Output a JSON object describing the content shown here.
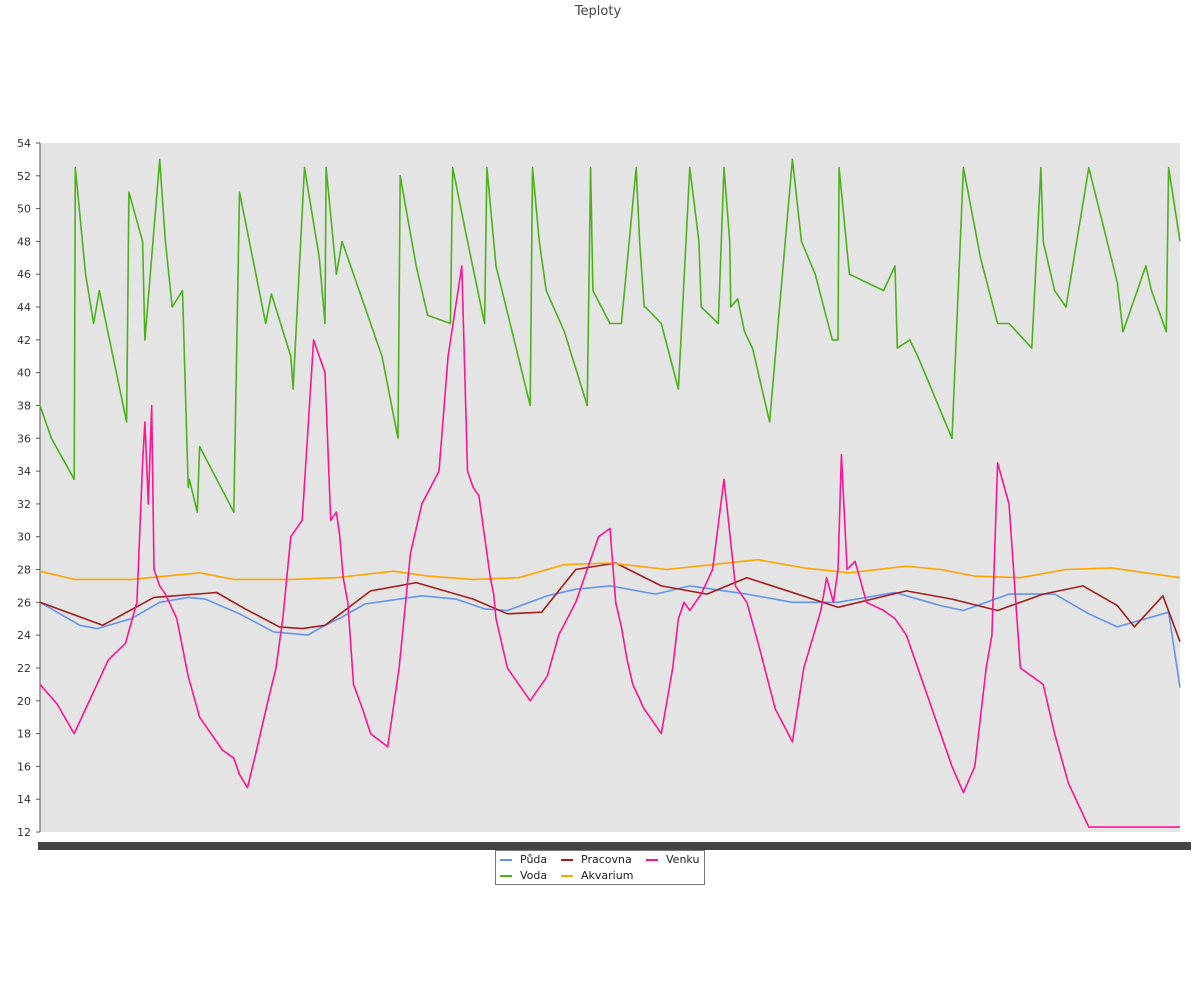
{
  "chart_data": {
    "type": "line",
    "title": "Teploty",
    "xlabel": "",
    "ylabel": "",
    "ylim": [
      12,
      54
    ],
    "y_ticks": [
      12,
      14,
      16,
      18,
      20,
      22,
      24,
      26,
      28,
      30,
      32,
      34,
      36,
      38,
      40,
      42,
      44,
      46,
      48,
      50,
      52,
      54
    ],
    "y_tick_labels": [
      "12",
      "14",
      "16",
      "18",
      "20",
      "22",
      "24",
      "26",
      "28",
      "30",
      "32",
      "34",
      "36",
      "38",
      "40",
      "42",
      "44",
      "46",
      "48",
      "50",
      "52",
      "54"
    ],
    "xlim": [
      0,
      1000
    ],
    "grid": false,
    "plot_background": "#e4e4e4",
    "legend_position": "bottom-center",
    "legend_columns": 3,
    "series": [
      {
        "name": "Půda",
        "color": "#6495ed",
        "x": [
          0,
          35,
          50,
          80,
          105,
          130,
          145,
          175,
          205,
          235,
          250,
          265,
          285,
          335,
          365,
          390,
          410,
          445,
          470,
          500,
          540,
          570,
          620,
          660,
          700,
          750,
          780,
          790,
          810,
          850,
          890,
          920,
          945,
          990,
          1000
        ],
        "y": [
          26.0,
          24.6,
          24.4,
          25.0,
          26.0,
          26.3,
          26.2,
          25.3,
          24.2,
          24.0,
          24.6,
          25.1,
          25.9,
          26.4,
          26.2,
          25.6,
          25.5,
          26.4,
          26.8,
          27.0,
          26.5,
          27.0,
          26.5,
          26.0,
          26.0,
          26.6,
          26.0,
          25.8,
          25.5,
          26.5,
          26.5,
          25.3,
          24.5,
          25.4,
          20.8
        ]
      },
      {
        "name": "Voda",
        "color": "#4cb21a",
        "x": [
          0,
          10,
          30,
          31,
          40,
          47,
          52,
          76,
          78,
          90,
          92,
          105,
          110,
          116,
          125,
          130,
          131,
          138,
          140,
          170,
          175,
          198,
          203,
          220,
          222,
          232,
          245,
          250,
          251,
          260,
          265,
          300,
          314,
          316,
          330,
          340,
          360,
          362,
          375,
          390,
          392,
          398,
          400,
          430,
          432,
          438,
          444,
          460,
          480,
          483,
          485,
          500,
          510,
          523,
          526,
          530,
          531,
          545,
          560,
          570,
          578,
          580,
          595,
          600,
          605,
          606,
          612,
          618,
          625,
          640,
          660,
          668,
          680,
          695,
          700,
          701,
          710,
          740,
          750,
          752,
          763,
          770,
          800,
          810,
          825,
          840,
          850,
          870,
          878,
          880,
          890,
          900,
          920,
          945,
          950,
          970,
          975,
          988,
          990,
          1000
        ],
        "y": [
          38.0,
          36.0,
          33.5,
          52.5,
          46.0,
          43.0,
          45.0,
          37.0,
          51.0,
          48.0,
          42.0,
          53.0,
          48.0,
          44.0,
          45.0,
          33.0,
          33.5,
          31.5,
          35.5,
          31.5,
          51.0,
          43.0,
          44.8,
          41.0,
          39.0,
          52.5,
          47.0,
          43.0,
          52.5,
          46.0,
          48.0,
          41.0,
          36.0,
          52.0,
          46.5,
          43.5,
          43.0,
          52.5,
          48.0,
          43.0,
          52.5,
          48.0,
          46.5,
          38.0,
          52.5,
          48.0,
          45.0,
          42.5,
          38.0,
          52.5,
          45.0,
          43.0,
          43.0,
          52.5,
          48.0,
          44.0,
          44.0,
          43.0,
          39.0,
          52.5,
          48.0,
          44.0,
          43.0,
          52.5,
          48.0,
          44.0,
          44.5,
          42.5,
          41.5,
          37.0,
          53.0,
          48.0,
          46.0,
          42.0,
          42.0,
          52.5,
          46.0,
          45.0,
          46.5,
          41.5,
          42.0,
          41.0,
          36.0,
          52.5,
          47.0,
          43.0,
          43.0,
          41.5,
          52.5,
          48.0,
          45.0,
          44.0,
          52.5,
          45.5,
          42.5,
          46.5,
          45.0,
          42.5,
          52.5,
          48.0
        ]
      },
      {
        "name": "Pracovna",
        "color": "#a31e1e",
        "x": [
          0,
          55,
          100,
          155,
          180,
          210,
          230,
          250,
          290,
          330,
          380,
          410,
          440,
          470,
          505,
          545,
          585,
          620,
          700,
          760,
          800,
          840,
          880,
          915,
          945,
          960,
          985,
          1000
        ],
        "y": [
          26.0,
          24.6,
          26.3,
          26.6,
          25.6,
          24.5,
          24.4,
          24.6,
          26.7,
          27.2,
          26.2,
          25.3,
          25.4,
          28.0,
          28.4,
          27.0,
          26.5,
          27.5,
          25.7,
          26.7,
          26.2,
          25.5,
          26.5,
          27.0,
          25.8,
          24.5,
          26.4,
          23.6
        ]
      },
      {
        "name": "Akvarium",
        "color": "#ffa500",
        "x": [
          0,
          30,
          80,
          140,
          170,
          220,
          260,
          310,
          340,
          380,
          420,
          460,
          500,
          550,
          590,
          630,
          670,
          710,
          760,
          790,
          820,
          860,
          900,
          940,
          990,
          1000
        ],
        "y": [
          27.9,
          27.4,
          27.4,
          27.8,
          27.4,
          27.4,
          27.5,
          27.9,
          27.6,
          27.4,
          27.5,
          28.3,
          28.4,
          28.0,
          28.3,
          28.6,
          28.1,
          27.8,
          28.2,
          28.0,
          27.6,
          27.5,
          28.0,
          28.1,
          27.6,
          27.5
        ]
      },
      {
        "name": "Venku",
        "color": "#ff1493",
        "x": [
          0,
          15,
          30,
          40,
          50,
          60,
          75,
          85,
          90,
          92,
          95,
          98,
          100,
          105,
          110,
          120,
          130,
          140,
          160,
          170,
          175,
          182,
          190,
          200,
          207,
          213,
          220,
          230,
          240,
          250,
          255,
          260,
          263,
          266,
          270,
          272,
          275,
          283,
          290,
          305,
          315,
          325,
          335,
          350,
          358,
          370,
          375,
          380,
          385,
          390,
          392,
          395,
          398,
          400,
          410,
          420,
          430,
          445,
          455,
          470,
          480,
          490,
          500,
          505,
          510,
          515,
          520,
          530,
          545,
          555,
          560,
          565,
          570,
          580,
          590,
          600,
          610,
          620,
          630,
          645,
          660,
          670,
          685,
          690,
          696,
          700,
          703,
          708,
          715,
          725,
          740,
          750,
          760,
          775,
          790,
          800,
          810,
          820,
          825,
          830,
          835,
          840,
          850,
          860,
          870,
          880,
          890,
          902,
          912,
          920,
          925,
          935,
          945,
          952,
          960,
          970,
          980,
          988,
          990,
          995,
          1000
        ],
        "y": [
          21.0,
          19.8,
          18.0,
          19.5,
          21.0,
          22.5,
          23.5,
          26.0,
          34.5,
          37.0,
          32.0,
          38.0,
          28.0,
          27.0,
          26.5,
          25.0,
          21.5,
          19.0,
          17.0,
          16.5,
          15.5,
          14.7,
          17.0,
          20.0,
          22.0,
          25.0,
          30.0,
          31.0,
          42.0,
          40.0,
          31.0,
          31.5,
          30.0,
          27.5,
          26.0,
          24.0,
          21.0,
          19.5,
          18.0,
          17.2,
          22.0,
          29.0,
          32.0,
          34.0,
          41.0,
          46.5,
          34.0,
          33.0,
          32.5,
          30.0,
          29.0,
          27.5,
          26.5,
          25.0,
          22.0,
          21.0,
          20.0,
          21.5,
          24.0,
          26.0,
          28.0,
          30.0,
          30.5,
          26.0,
          24.5,
          22.5,
          21.0,
          19.5,
          18.0,
          22.0,
          25.0,
          26.0,
          25.5,
          26.5,
          28.0,
          33.5,
          27.0,
          26.0,
          23.5,
          19.5,
          17.5,
          22.0,
          25.5,
          27.5,
          26.0,
          28.0,
          35.0,
          28.0,
          28.5,
          26.0,
          25.5,
          25.0,
          24.0,
          21.0,
          18.0,
          16.0,
          14.4,
          16.0,
          19.0,
          22.0,
          24.0,
          34.5,
          32.0,
          22.0,
          21.5,
          21.0,
          18.0,
          15.0,
          13.5,
          12.3,
          12.3,
          12.3,
          12.3,
          12.3,
          12.3,
          12.3,
          12.3,
          12.3,
          12.3,
          12.3,
          12.3
        ]
      }
    ]
  }
}
